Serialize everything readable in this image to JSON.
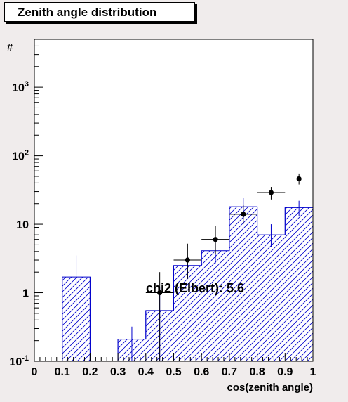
{
  "chart_data": {
    "type": "bar",
    "title": "Zenith angle distribution",
    "xlabel": "cos(zenith angle)",
    "ylabel": "#",
    "xlim": [
      0,
      1
    ],
    "ylim": [
      0.1,
      5000
    ],
    "yscale": "log",
    "grid": false,
    "annotation": "chi2 (Elbert): 5.6",
    "x_tick_labels": [
      "0",
      "0.1",
      "0.2",
      "0.3",
      "0.4",
      "0.5",
      "0.6",
      "0.7",
      "0.8",
      "0.9",
      "1"
    ],
    "y_tick_labels": [
      {
        "value": 0.1,
        "base": "10",
        "exp": "-1"
      },
      {
        "value": 1,
        "base": "1",
        "exp": ""
      },
      {
        "value": 10,
        "base": "10",
        "exp": ""
      },
      {
        "value": 100,
        "base": "10",
        "exp": "2"
      },
      {
        "value": 1000,
        "base": "10",
        "exp": "3"
      }
    ],
    "histogram": {
      "bin_edges": [
        0,
        0.1,
        0.2,
        0.3,
        0.4,
        0.5,
        0.6,
        0.7,
        0.8,
        0.9,
        1.0
      ],
      "values": [
        0.1,
        1.7,
        0.1,
        0.21,
        0.55,
        2.5,
        4.1,
        18,
        7,
        17.5
      ],
      "errors_up": [
        null,
        3.5,
        null,
        0.32,
        1.2,
        3.4,
        6.0,
        24,
        10,
        22
      ],
      "errors_low": [
        null,
        0.1,
        null,
        0.1,
        0.1,
        1.6,
        2.7,
        12,
        4.6,
        13
      ],
      "color": "#0000cc"
    },
    "points": [
      {
        "x": 0.45,
        "y": 1.0,
        "y_low": 0.1,
        "y_high": 2.0
      },
      {
        "x": 0.55,
        "y": 3.0,
        "y_low": 1.6,
        "y_high": 5.2
      },
      {
        "x": 0.65,
        "y": 6.0,
        "y_low": 3.7,
        "y_high": 9.5
      },
      {
        "x": 0.75,
        "y": 14,
        "y_low": 10,
        "y_high": 19
      },
      {
        "x": 0.85,
        "y": 29,
        "y_low": 23,
        "y_high": 35
      },
      {
        "x": 0.95,
        "y": 46,
        "y_low": 38,
        "y_high": 55
      }
    ],
    "point_color": "#000000"
  }
}
